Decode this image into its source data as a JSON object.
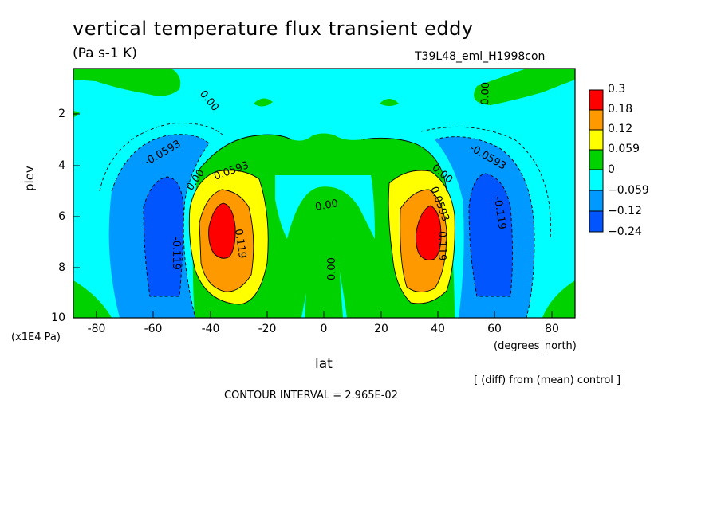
{
  "header": {
    "title": "vertical temperature flux transient eddy",
    "units": "(Pa s-1 K)",
    "run_id": "T39L48_eml_H1998con"
  },
  "axes": {
    "ylabel": "plev",
    "yunit": "(x1E4 Pa)",
    "xlabel": "lat",
    "xunit": "(degrees_north)",
    "yticks": [
      "2",
      "4",
      "6",
      "8",
      "10"
    ],
    "xticks": [
      "-80",
      "-60",
      "-40",
      "-20",
      "0",
      "20",
      "40",
      "60",
      "80"
    ]
  },
  "footer": {
    "note": "[ (diff) from (mean) control ]",
    "contour_interval": "CONTOUR INTERVAL = 2.965E-02"
  },
  "colorbar": {
    "labels": [
      "0.3",
      "0.18",
      "0.12",
      "0.059",
      "0",
      "−0.059",
      "−0.12",
      "−0.24"
    ],
    "colors": [
      "#ff0000",
      "#ff9900",
      "#ffff00",
      "#00d200",
      "#00ffff",
      "#0099ff",
      "#0055ff"
    ]
  },
  "chart_data": {
    "type": "heatmap",
    "title": "vertical temperature flux transient eddy",
    "subtitle": "(Pa s-1 K)",
    "xlabel": "lat",
    "ylabel": "plev",
    "xlim": [
      -88,
      88
    ],
    "ylim": [
      10,
      0
    ],
    "levels": [
      -0.24,
      -0.12,
      -0.059,
      0,
      0.059,
      0.12,
      0.18,
      0.3
    ],
    "contour_labels": [
      "0.00",
      "-0.0593",
      "0.0593",
      "-0.119",
      "0.119",
      "0.00"
    ],
    "features": [
      {
        "name": "SH positive maximum",
        "lat": -37,
        "plev": 6.6,
        "value": 0.3
      },
      {
        "name": "NH positive maximum",
        "lat": 37,
        "plev": 6.6,
        "value": 0.3
      },
      {
        "name": "SH negative minimum",
        "lat": -55,
        "plev": 7,
        "value": -0.24
      },
      {
        "name": "NH negative minimum",
        "lat": 56,
        "plev": 7,
        "value": -0.24
      }
    ]
  }
}
